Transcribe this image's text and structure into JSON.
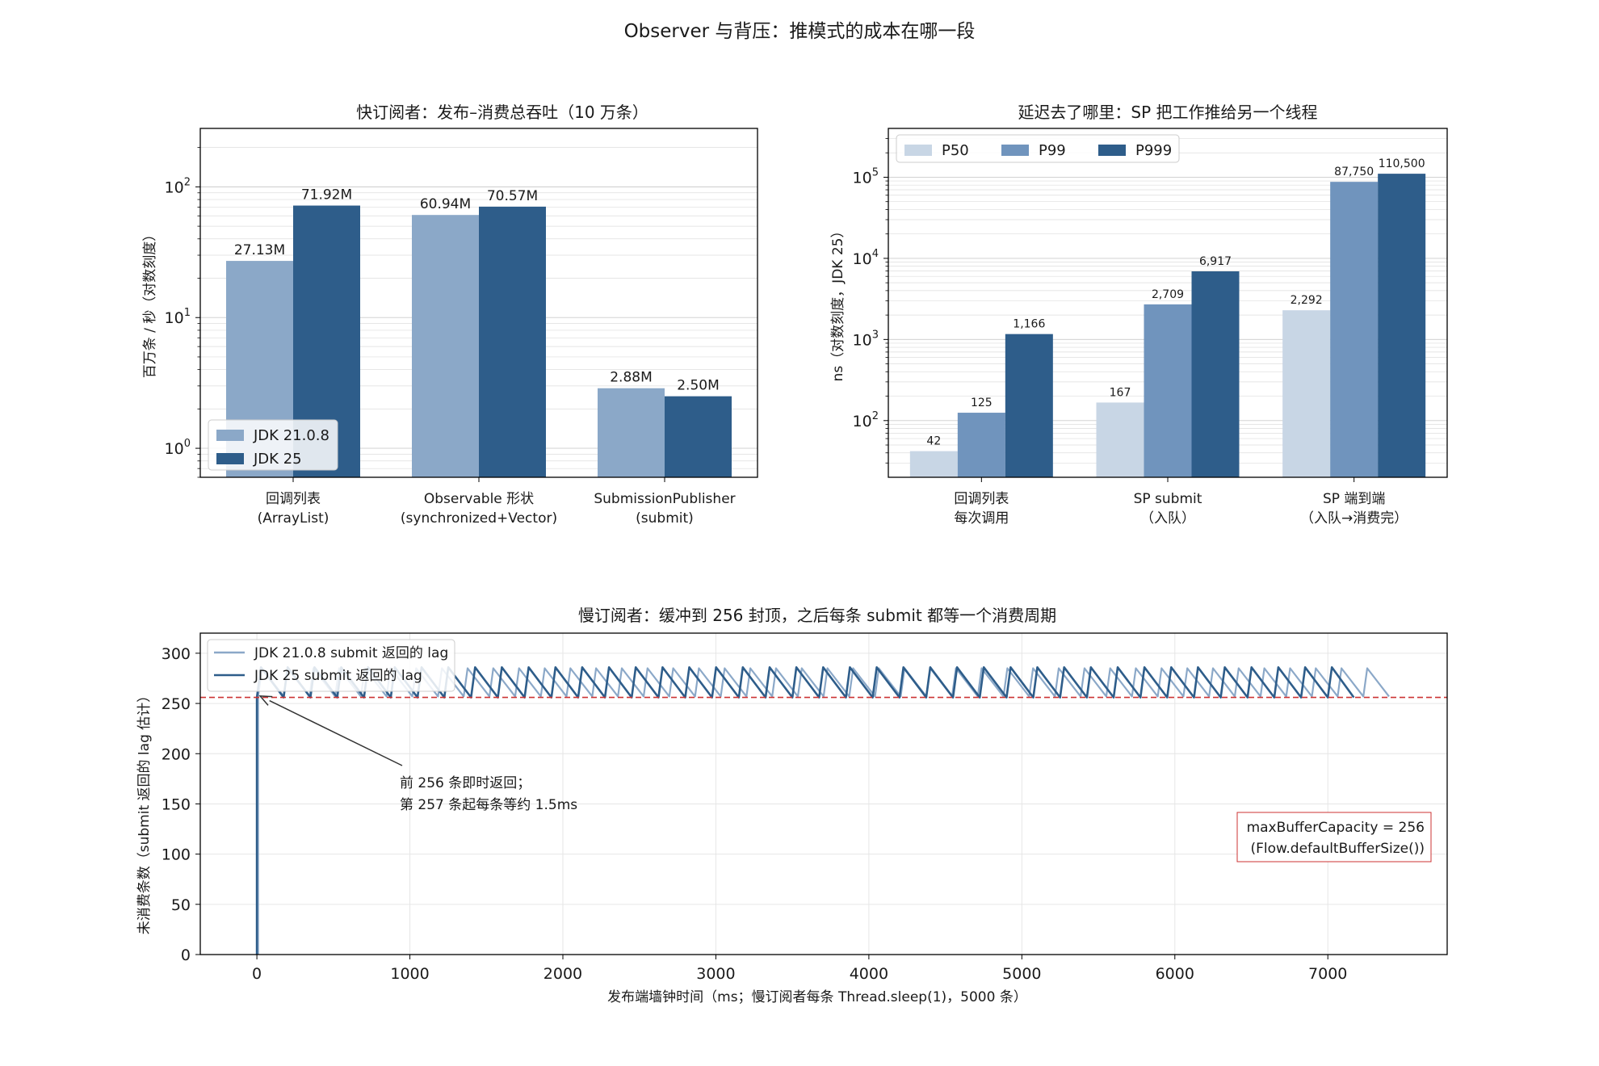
{
  "suptitle": "Observer 与背压：推模式的成本在哪一段",
  "colors": {
    "jdk21": "#8ba8c8",
    "jdk25": "#2e5d8a",
    "p50": "#c8d6e5",
    "p99": "#7094bd",
    "p999": "#2e5d8a",
    "buffer_line": "#cc3333",
    "annotation": "#333333"
  },
  "chart_data": [
    {
      "type": "bar",
      "title": "快订阅者：发布–消费总吞吐（10 万条）",
      "xlabel": "",
      "ylabel": "百万条 / 秒（对数刻度）",
      "yscale": "log",
      "ylim": [
        0.6,
        280
      ],
      "yticks": [
        1,
        10,
        100
      ],
      "ytick_labels": [
        {
          "base": "10",
          "exp": "0"
        },
        {
          "base": "10",
          "exp": "1"
        },
        {
          "base": "10",
          "exp": "2"
        }
      ],
      "categories": [
        [
          "回调列表",
          "(ArrayList)"
        ],
        [
          "Observable 形状",
          "(synchronized+Vector)"
        ],
        [
          "SubmissionPublisher",
          "(submit)"
        ]
      ],
      "series": [
        {
          "name": "JDK 21.0.8",
          "values": [
            27.13,
            60.94,
            2.88
          ],
          "labels": [
            "27.13M",
            "60.94M",
            "2.88M"
          ],
          "color_key": "jdk21"
        },
        {
          "name": "JDK 25",
          "values": [
            71.92,
            70.57,
            2.5
          ],
          "labels": [
            "71.92M",
            "70.57M",
            "2.50M"
          ],
          "color_key": "jdk25"
        }
      ],
      "legend": "lower-left",
      "grid": true
    },
    {
      "type": "bar",
      "title": "延迟去了哪里：SP 把工作推给另一个线程",
      "xlabel": "",
      "ylabel": "ns（对数刻度，JDK 25）",
      "yscale": "log",
      "ylim": [
        20,
        400000
      ],
      "yticks": [
        100,
        1000,
        10000,
        100000
      ],
      "ytick_labels": [
        {
          "base": "10",
          "exp": "2"
        },
        {
          "base": "10",
          "exp": "3"
        },
        {
          "base": "10",
          "exp": "4"
        },
        {
          "base": "10",
          "exp": "5"
        }
      ],
      "categories": [
        [
          "回调列表",
          "每次调用"
        ],
        [
          "SP submit",
          "（入队）"
        ],
        [
          "SP 端到端",
          "（入队→消费完）"
        ]
      ],
      "series": [
        {
          "name": "P50",
          "values": [
            42,
            167,
            2292
          ],
          "labels": [
            "42",
            "167",
            "2,292"
          ],
          "color_key": "p50"
        },
        {
          "name": "P99",
          "values": [
            125,
            2709,
            87750
          ],
          "labels": [
            "125",
            "2,709",
            "87,750"
          ],
          "color_key": "p99"
        },
        {
          "name": "P999",
          "values": [
            1166,
            6917,
            110500
          ],
          "labels": [
            "1,166",
            "6,917",
            "110,500"
          ],
          "color_key": "p999"
        }
      ],
      "legend": "upper-left",
      "grid": true
    },
    {
      "type": "line",
      "title": "慢订阅者：缓冲到 256 封顶，之后每条 submit 都等一个消费周期",
      "xlabel": "发布端墙钟时间（ms；慢订阅者每条 Thread.sleep(1)，5000 条）",
      "ylabel": "未消费条数（submit 返回的 lag 估计）",
      "xlim": [
        -370,
        7780
      ],
      "ylim": [
        0,
        320
      ],
      "xticks": [
        0,
        1000,
        2000,
        3000,
        4000,
        5000,
        6000,
        7000
      ],
      "yticks": [
        0,
        50,
        100,
        150,
        200,
        250,
        300
      ],
      "series": [
        {
          "name": "JDK 21.0.8 submit 返回的 lag",
          "color_key": "jdk21",
          "start_ms": 8,
          "end_ms": 7400,
          "period_ms": 168,
          "low": 257,
          "high": 285
        },
        {
          "name": "JDK 25 submit 返回的 lag",
          "color_key": "jdk25",
          "start_ms": 0,
          "end_ms": 7170,
          "period_ms": 175,
          "low": 256,
          "high": 286
        }
      ],
      "hline": {
        "y": 256,
        "style": "dashed",
        "color_key": "buffer_line"
      },
      "annotation": {
        "lines": [
          "前 256 条即时返回；",
          "第 257 条起每条等约 1.5ms"
        ],
        "arrow_to": [
          40,
          256
        ]
      },
      "textbox": {
        "lines": [
          "maxBufferCapacity = 256",
          "(Flow.defaultBufferSize())"
        ],
        "color_key": "buffer_line"
      },
      "legend": "upper-left",
      "grid": true
    }
  ]
}
